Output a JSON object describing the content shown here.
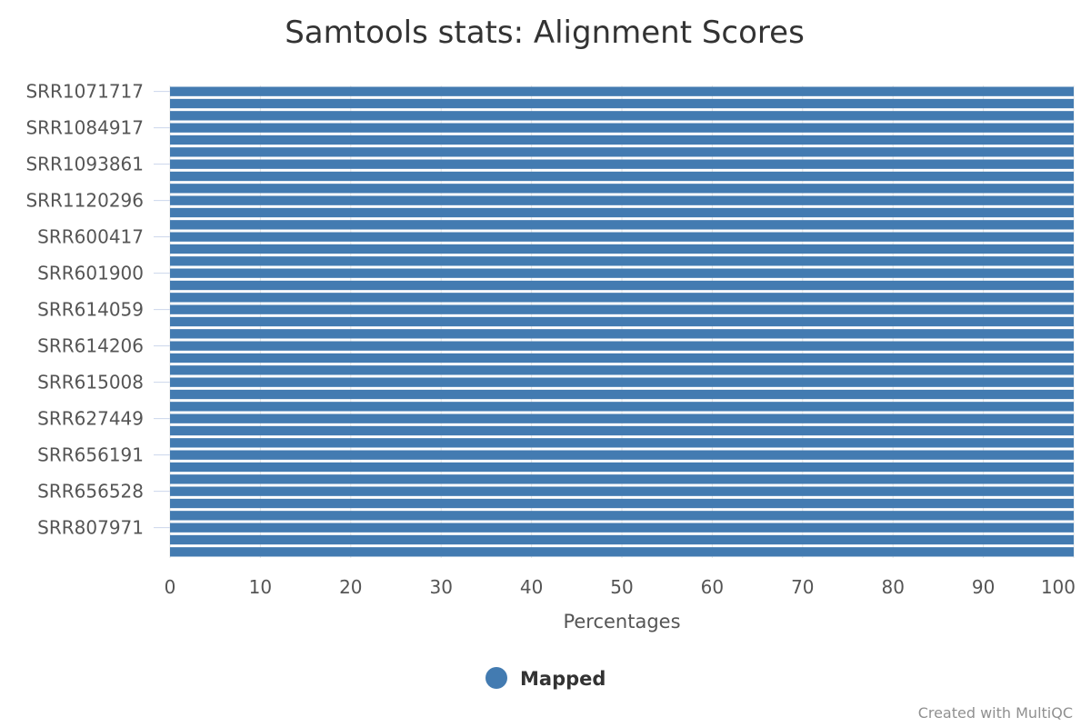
{
  "title": "Samtools stats: Alignment Scores",
  "credits": "Created with MultiQC",
  "colors": {
    "series": "#437bb1",
    "title": "#333333",
    "labels": "#555555",
    "grid": "#e6e6e6",
    "credits": "#909090"
  },
  "chart_data": {
    "type": "bar",
    "orientation": "horizontal",
    "stacking": "percent",
    "title": "Samtools stats: Alignment Scores",
    "xlabel": "Percentages",
    "xlim": [
      0,
      100
    ],
    "xticks": [
      0,
      10,
      20,
      30,
      40,
      50,
      60,
      70,
      80,
      90,
      100
    ],
    "grid": true,
    "legend_position": "bottom-center",
    "labeled_categories": [
      "SRR1071717",
      "SRR1084917",
      "SRR1093861",
      "SRR1120296",
      "SRR600417",
      "SRR601900",
      "SRR614059",
      "SRR614206",
      "SRR615008",
      "SRR627449",
      "SRR656191",
      "SRR656528",
      "SRR807971"
    ],
    "bars_per_label": 3,
    "series": [
      {
        "name": "Mapped",
        "color": "#437bb1",
        "values": [
          100,
          100,
          100,
          100,
          100,
          100,
          100,
          100,
          100,
          100,
          100,
          100,
          100,
          100,
          100,
          100,
          100,
          100,
          100,
          100,
          100,
          100,
          100,
          100,
          100,
          100,
          100,
          100,
          100,
          100,
          100,
          100,
          100,
          100,
          100,
          100,
          100,
          100,
          100
        ]
      }
    ]
  }
}
